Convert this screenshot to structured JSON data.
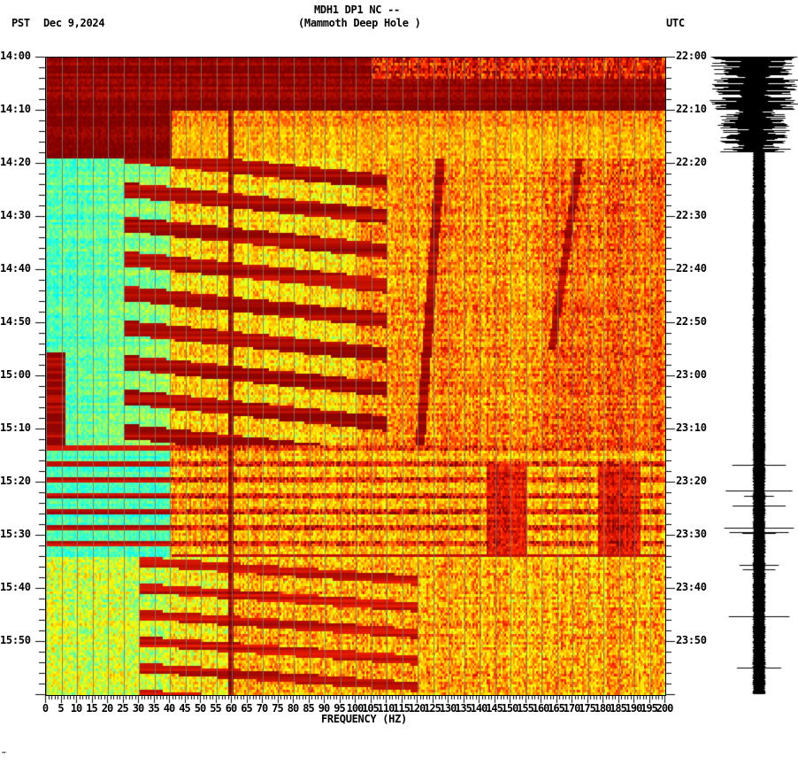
{
  "header": {
    "station": "MDH1 DP1 NC --",
    "location": "(Mammoth Deep Hole )",
    "left_tz": "PST",
    "date": "Dec 9,2024",
    "right_tz": "UTC"
  },
  "footer_mark": "‴",
  "chart_data": {
    "type": "heatmap",
    "title": "MDH1 DP1 NC -- (Mammoth Deep Hole ) spectrogram",
    "xlabel": "FREQUENCY (HZ)",
    "ylabel_left": "PST",
    "ylabel_right": "UTC",
    "xlim": [
      0,
      200
    ],
    "x_ticks": [
      0,
      5,
      10,
      15,
      20,
      25,
      30,
      35,
      40,
      45,
      50,
      55,
      60,
      65,
      70,
      75,
      80,
      85,
      90,
      95,
      100,
      105,
      110,
      115,
      120,
      125,
      130,
      135,
      140,
      145,
      150,
      155,
      160,
      165,
      170,
      175,
      180,
      185,
      190,
      195,
      200
    ],
    "y_ticks_left": [
      "14:00",
      "14:10",
      "14:20",
      "14:30",
      "14:40",
      "14:50",
      "15:00",
      "15:10",
      "15:20",
      "15:30",
      "15:40",
      "15:50"
    ],
    "y_ticks_right": [
      "22:00",
      "22:10",
      "22:20",
      "22:30",
      "22:40",
      "22:50",
      "23:00",
      "23:10",
      "23:20",
      "23:30",
      "23:40",
      "23:50"
    ],
    "time_range_minutes": 120,
    "colormap": [
      "#0000ff",
      "#00a0ff",
      "#00ffff",
      "#80ff80",
      "#ffff00",
      "#ffa000",
      "#ff2000",
      "#800000"
    ],
    "features": [
      {
        "name": "high-energy broadband",
        "t_start_min": 0,
        "t_end_min": 19,
        "level": "saturated"
      },
      {
        "name": "persistent line ~59-60 Hz",
        "freq_hz": 59.5
      },
      {
        "name": "low-frequency quiet band",
        "freq_range_hz": [
          0,
          40
        ],
        "t_start_min": 19,
        "t_end_min": 73
      },
      {
        "name": "low-frequency energy burst",
        "freq_range_hz": [
          0,
          5
        ],
        "t_start_min": 55,
        "t_end_min": 73
      },
      {
        "name": "periodic horizontal stripes",
        "t_start_min": 75,
        "t_end_min": 94,
        "period_min": 3
      },
      {
        "name": "drifting harmonic tracks",
        "t_start_min": 19,
        "t_end_min": 120
      },
      {
        "name": "near-vertical drifting line",
        "freq_range_hz": [
          125,
          130
        ]
      },
      {
        "name": "near-vertical drifting line",
        "freq_range_hz": [
          160,
          172
        ]
      }
    ],
    "grid_vertical_hz_step": 5,
    "seismogram": {
      "position": "right",
      "large_amplitude_until_min": 18
    }
  }
}
